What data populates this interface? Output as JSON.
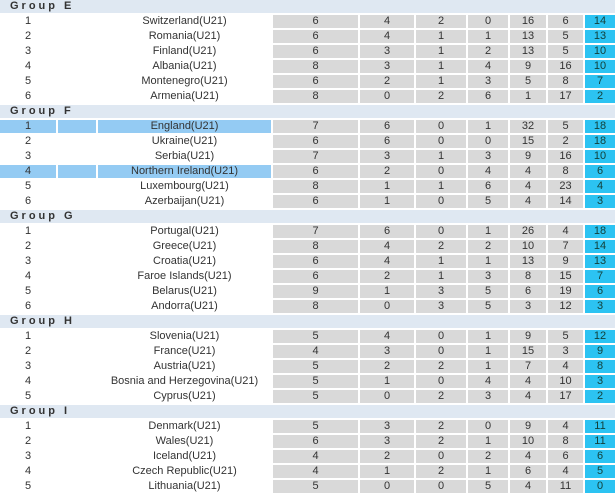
{
  "colors": {
    "header_bg": "#dfe8f2",
    "stat_cell_bg": "#d9d9d9",
    "points_cell_bg": "#2cc3f2",
    "highlight_row_bg": "#94cbf3"
  },
  "groups": [
    {
      "label": "Group E",
      "teams": [
        {
          "rank": "1",
          "name": "Switzerland(U21)",
          "stats": [
            "6",
            "4",
            "2",
            "0",
            "16",
            "6"
          ],
          "points": "14",
          "highlighted": false
        },
        {
          "rank": "2",
          "name": "Romania(U21)",
          "stats": [
            "6",
            "4",
            "1",
            "1",
            "13",
            "5"
          ],
          "points": "13",
          "highlighted": false
        },
        {
          "rank": "3",
          "name": "Finland(U21)",
          "stats": [
            "6",
            "3",
            "1",
            "2",
            "13",
            "5"
          ],
          "points": "10",
          "highlighted": false
        },
        {
          "rank": "4",
          "name": "Albania(U21)",
          "stats": [
            "8",
            "3",
            "1",
            "4",
            "9",
            "16"
          ],
          "points": "10",
          "highlighted": false
        },
        {
          "rank": "5",
          "name": "Montenegro(U21)",
          "stats": [
            "6",
            "2",
            "1",
            "3",
            "5",
            "8"
          ],
          "points": "7",
          "highlighted": false
        },
        {
          "rank": "6",
          "name": "Armenia(U21)",
          "stats": [
            "8",
            "0",
            "2",
            "6",
            "1",
            "17"
          ],
          "points": "2",
          "highlighted": false
        }
      ]
    },
    {
      "label": "Group F",
      "teams": [
        {
          "rank": "1",
          "name": "England(U21)",
          "stats": [
            "7",
            "6",
            "0",
            "1",
            "32",
            "5"
          ],
          "points": "18",
          "highlighted": true
        },
        {
          "rank": "2",
          "name": "Ukraine(U21)",
          "stats": [
            "6",
            "6",
            "0",
            "0",
            "15",
            "2"
          ],
          "points": "18",
          "highlighted": false
        },
        {
          "rank": "3",
          "name": "Serbia(U21)",
          "stats": [
            "7",
            "3",
            "1",
            "3",
            "9",
            "16"
          ],
          "points": "10",
          "highlighted": false
        },
        {
          "rank": "4",
          "name": "Northern Ireland(U21)",
          "stats": [
            "6",
            "2",
            "0",
            "4",
            "4",
            "8"
          ],
          "points": "6",
          "highlighted": true
        },
        {
          "rank": "5",
          "name": "Luxembourg(U21)",
          "stats": [
            "8",
            "1",
            "1",
            "6",
            "4",
            "23"
          ],
          "points": "4",
          "highlighted": false
        },
        {
          "rank": "6",
          "name": "Azerbaijan(U21)",
          "stats": [
            "6",
            "1",
            "0",
            "5",
            "4",
            "14"
          ],
          "points": "3",
          "highlighted": false
        }
      ]
    },
    {
      "label": "Group G",
      "teams": [
        {
          "rank": "1",
          "name": "Portugal(U21)",
          "stats": [
            "7",
            "6",
            "0",
            "1",
            "26",
            "4"
          ],
          "points": "18",
          "highlighted": false
        },
        {
          "rank": "2",
          "name": "Greece(U21)",
          "stats": [
            "8",
            "4",
            "2",
            "2",
            "10",
            "7"
          ],
          "points": "14",
          "highlighted": false
        },
        {
          "rank": "3",
          "name": "Croatia(U21)",
          "stats": [
            "6",
            "4",
            "1",
            "1",
            "13",
            "9"
          ],
          "points": "13",
          "highlighted": false
        },
        {
          "rank": "4",
          "name": "Faroe Islands(U21)",
          "stats": [
            "6",
            "2",
            "1",
            "3",
            "8",
            "15"
          ],
          "points": "7",
          "highlighted": false
        },
        {
          "rank": "5",
          "name": "Belarus(U21)",
          "stats": [
            "9",
            "1",
            "3",
            "5",
            "6",
            "19"
          ],
          "points": "6",
          "highlighted": false
        },
        {
          "rank": "6",
          "name": "Andorra(U21)",
          "stats": [
            "8",
            "0",
            "3",
            "5",
            "3",
            "12"
          ],
          "points": "3",
          "highlighted": false
        }
      ]
    },
    {
      "label": "Group H",
      "teams": [
        {
          "rank": "1",
          "name": "Slovenia(U21)",
          "stats": [
            "5",
            "4",
            "0",
            "1",
            "9",
            "5"
          ],
          "points": "12",
          "highlighted": false
        },
        {
          "rank": "2",
          "name": "France(U21)",
          "stats": [
            "4",
            "3",
            "0",
            "1",
            "15",
            "3"
          ],
          "points": "9",
          "highlighted": false
        },
        {
          "rank": "3",
          "name": "Austria(U21)",
          "stats": [
            "5",
            "2",
            "2",
            "1",
            "7",
            "4"
          ],
          "points": "8",
          "highlighted": false
        },
        {
          "rank": "4",
          "name": "Bosnia and Herzegovina(U21)",
          "stats": [
            "5",
            "1",
            "0",
            "4",
            "4",
            "10"
          ],
          "points": "3",
          "highlighted": false
        },
        {
          "rank": "5",
          "name": "Cyprus(U21)",
          "stats": [
            "5",
            "0",
            "2",
            "3",
            "4",
            "17"
          ],
          "points": "2",
          "highlighted": false
        }
      ]
    },
    {
      "label": "Group I",
      "teams": [
        {
          "rank": "1",
          "name": "Denmark(U21)",
          "stats": [
            "5",
            "3",
            "2",
            "0",
            "9",
            "4"
          ],
          "points": "11",
          "highlighted": false
        },
        {
          "rank": "2",
          "name": "Wales(U21)",
          "stats": [
            "6",
            "3",
            "2",
            "1",
            "10",
            "8"
          ],
          "points": "11",
          "highlighted": false
        },
        {
          "rank": "3",
          "name": "Iceland(U21)",
          "stats": [
            "4",
            "2",
            "0",
            "2",
            "4",
            "6"
          ],
          "points": "6",
          "highlighted": false
        },
        {
          "rank": "4",
          "name": "Czech Republic(U21)",
          "stats": [
            "4",
            "1",
            "2",
            "1",
            "6",
            "4"
          ],
          "points": "5",
          "highlighted": false
        },
        {
          "rank": "5",
          "name": "Lithuania(U21)",
          "stats": [
            "5",
            "0",
            "0",
            "5",
            "4",
            "11"
          ],
          "points": "0",
          "highlighted": false
        }
      ]
    }
  ]
}
